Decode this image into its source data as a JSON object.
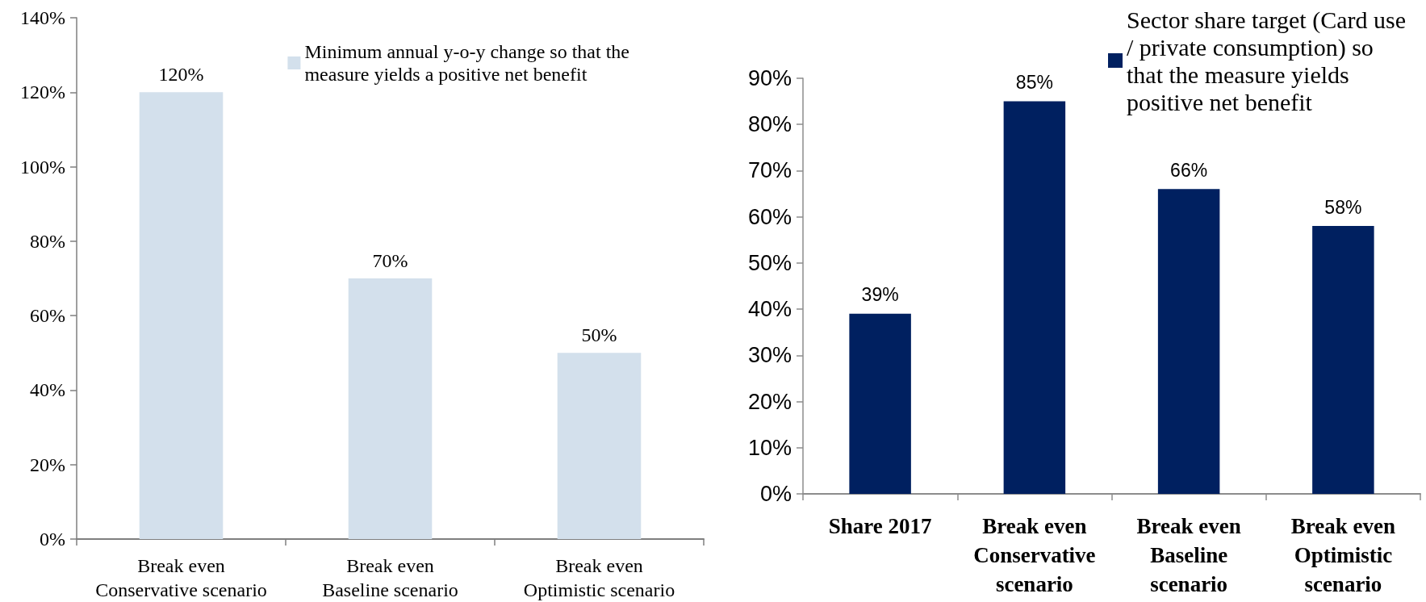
{
  "chart_data": [
    {
      "type": "bar",
      "categories": [
        "Break even\nConservative scenario",
        "Break even\nBaseline scenario",
        "Break even\nOptimistic scenario"
      ],
      "series": [
        {
          "name": "Minimum annual y-o-y change so that the\nmeasure yields a positive net benefit",
          "color": "#d3e0ec",
          "values": [
            120,
            70,
            50
          ],
          "value_labels": [
            "120%",
            "70%",
            "50%"
          ]
        }
      ],
      "ylim": [
        0,
        140
      ],
      "yticks": [
        {
          "value": 0,
          "label": "0%"
        },
        {
          "value": 20,
          "label": "20%"
        },
        {
          "value": 40,
          "label": "40%"
        },
        {
          "value": 60,
          "label": "60%"
        },
        {
          "value": 80,
          "label": "80%"
        },
        {
          "value": 100,
          "label": "100%"
        },
        {
          "value": 120,
          "label": "120%"
        },
        {
          "value": 140,
          "label": "140%"
        }
      ],
      "legend": "top right"
    },
    {
      "type": "bar",
      "categories": [
        "Share 2017",
        "Break even\nConservative\nscenario",
        "Break even\nBaseline\nscenario",
        "Break even\nOptimistic\nscenario"
      ],
      "series": [
        {
          "name": "Sector share target (Card use\n/ private consumption) so\nthat the measure yields\npositive net benefit",
          "color": "#002060",
          "values": [
            39,
            85,
            66,
            58
          ],
          "value_labels": [
            "39%",
            "85%",
            "66%",
            "58%"
          ]
        }
      ],
      "ylim": [
        0,
        90
      ],
      "yticks": [
        {
          "value": 0,
          "label": "0%"
        },
        {
          "value": 10,
          "label": "10%"
        },
        {
          "value": 20,
          "label": "20%"
        },
        {
          "value": 30,
          "label": "30%"
        },
        {
          "value": 40,
          "label": "40%"
        },
        {
          "value": 50,
          "label": "50%"
        },
        {
          "value": 60,
          "label": "60%"
        },
        {
          "value": 70,
          "label": "70%"
        },
        {
          "value": 80,
          "label": "80%"
        },
        {
          "value": 90,
          "label": "90%"
        }
      ],
      "legend": "top right"
    }
  ]
}
